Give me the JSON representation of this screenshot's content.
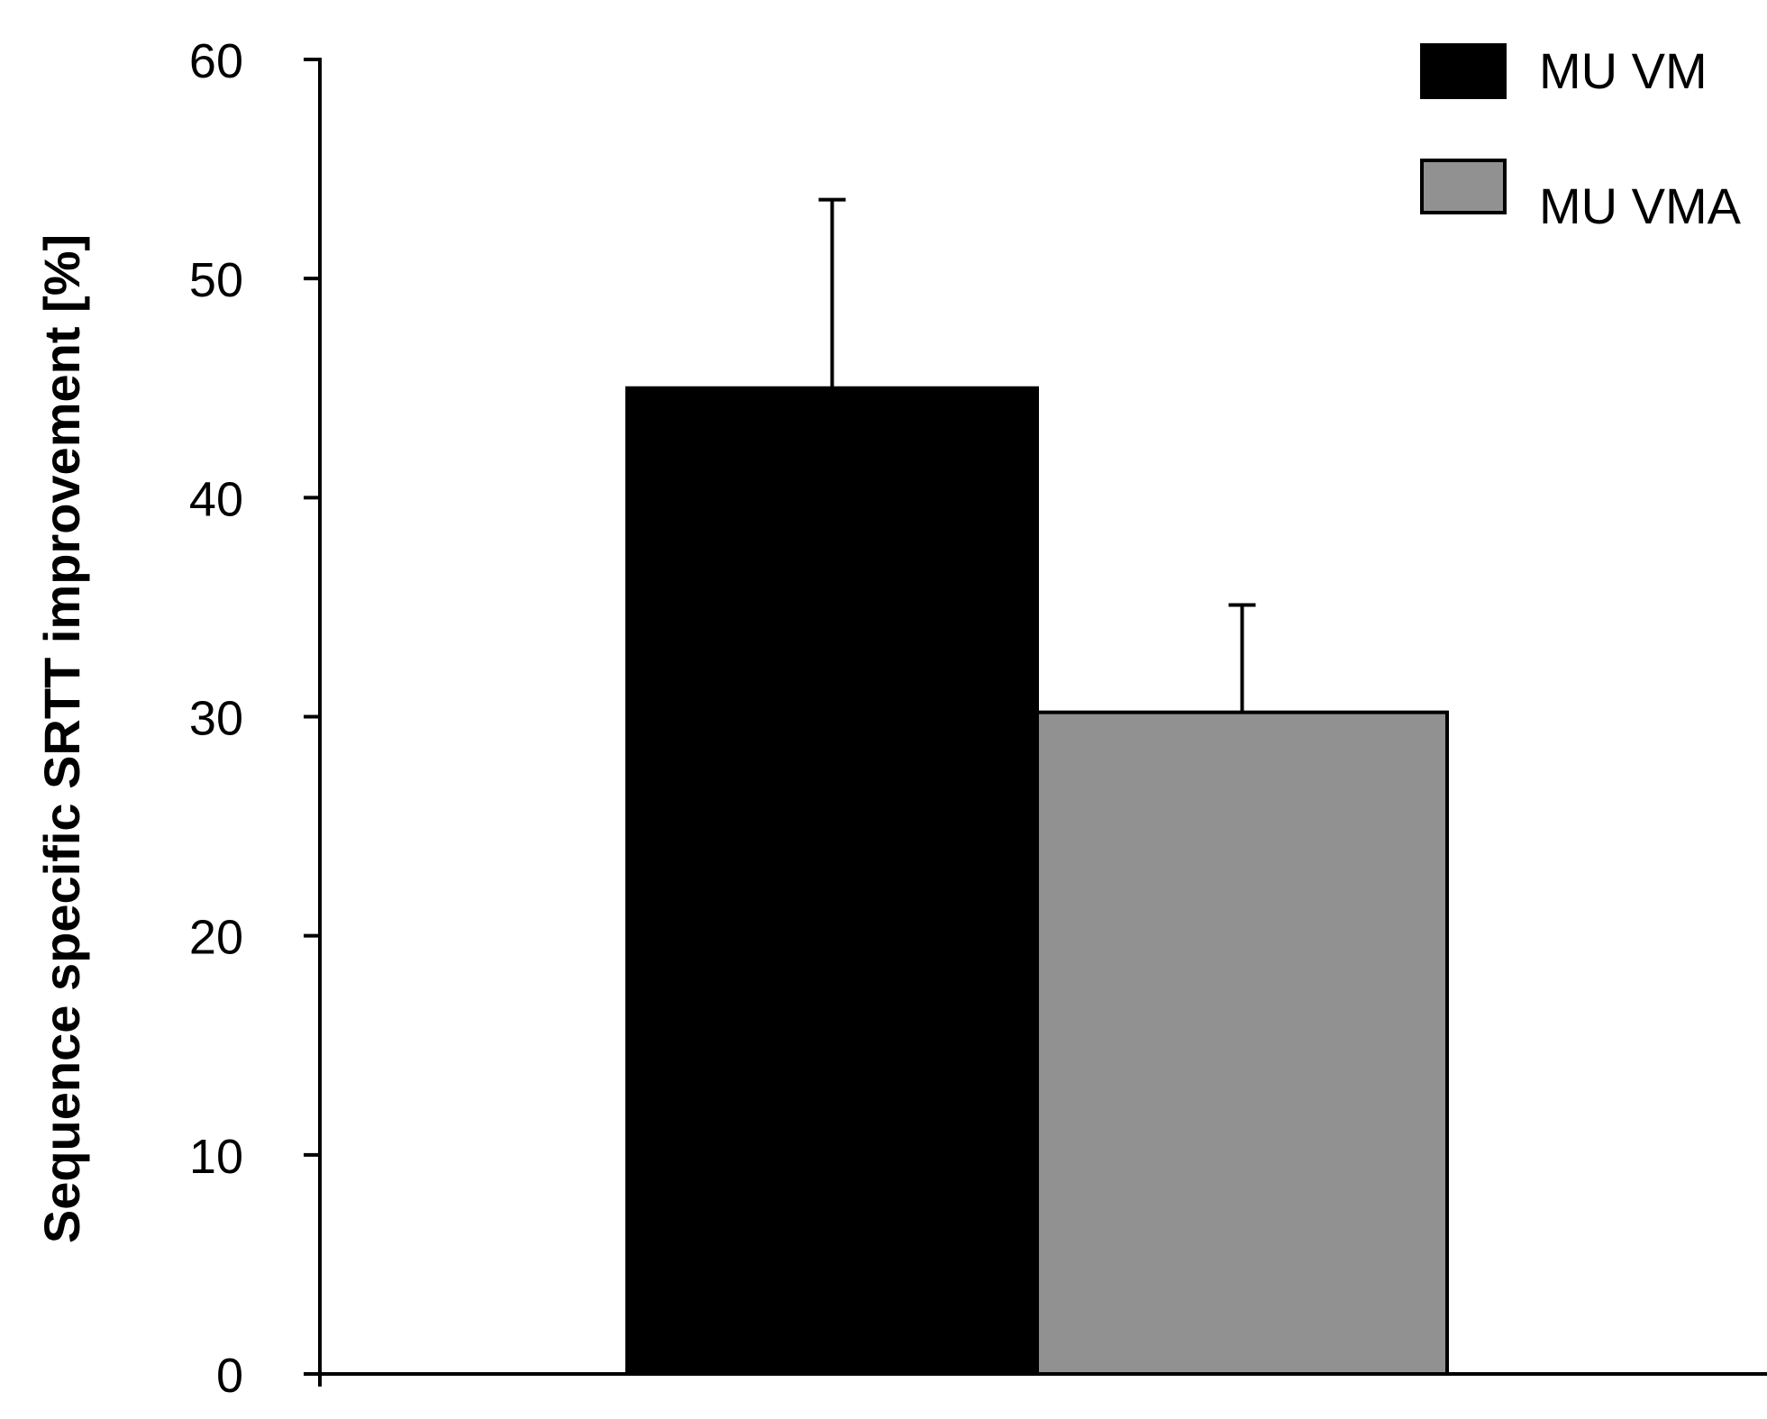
{
  "chart_data": {
    "type": "bar",
    "title": "",
    "xlabel": "",
    "ylabel": "Sequence specific SRTT improvement  [%]",
    "ylim": [
      0,
      60
    ],
    "yticks": [
      0,
      10,
      20,
      30,
      40,
      50,
      60
    ],
    "grid": false,
    "legend_position": "top-right",
    "series": [
      {
        "name": "MU VM",
        "value": 45.0,
        "error": 8.6,
        "color": "#000000"
      },
      {
        "name": "MU VMA",
        "value": 30.2,
        "error": 4.9,
        "color": "#919191"
      }
    ]
  }
}
